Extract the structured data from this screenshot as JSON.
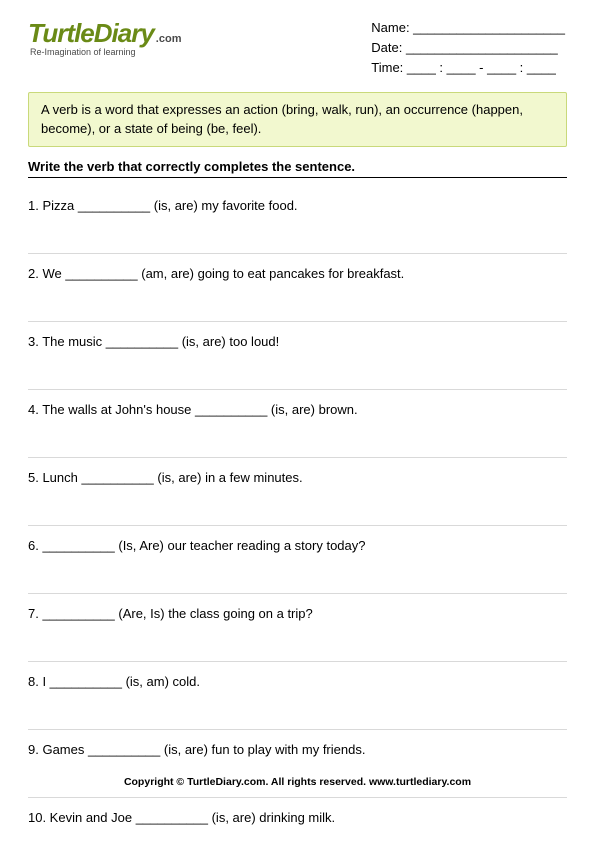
{
  "logo": {
    "main": "TurtleDiary",
    "dotcom": ".com",
    "tagline": "Re-Imagination of learning"
  },
  "meta": {
    "name_label": "Name: _____________________",
    "date_label": "Date: _____________________",
    "time_label": "Time: ____ : ____ - ____ : ____"
  },
  "info": "A verb is a word that expresses an action (bring, walk, run), an occurrence (happen, become), or a state of being (be, feel).",
  "instruction": "Write the verb that correctly completes the sentence.",
  "questions": [
    "1. Pizza __________ (is, are) my favorite food.",
    "2. We __________ (am, are) going to eat pancakes for breakfast.",
    "3. The music __________ (is, are) too loud!",
    "4. The walls at John's house __________ (is, are) brown.",
    "5. Lunch __________ (is, are) in a few minutes.",
    "6. __________ (Is, Are) our teacher reading a story today?",
    "7. __________ (Are, Is) the class going on a trip?",
    "8. I __________ (is, am) cold.",
    "9. Games __________ (is, are) fun to play with my friends.",
    "10. Kevin and Joe __________ (is, are) drinking milk."
  ],
  "footer": "Copyright © TurtleDiary.com. All rights reserved. www.turtlediary.com",
  "colors": {
    "logo_green": "#6a8a16",
    "info_bg": "#f2f8cf",
    "info_border": "#c9d97a",
    "divider": "#d9d9d9",
    "text": "#000000"
  }
}
